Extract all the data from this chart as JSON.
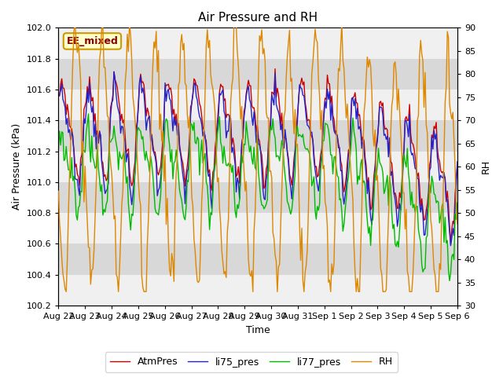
{
  "title": "Air Pressure and RH",
  "xlabel": "Time",
  "ylabel_left": "Air Pressure (kPa)",
  "ylabel_right": "RH",
  "ylim_left": [
    100.2,
    102.0
  ],
  "ylim_right": [
    30,
    90
  ],
  "yticks_left": [
    100.2,
    100.4,
    100.6,
    100.8,
    101.0,
    101.2,
    101.4,
    101.6,
    101.8,
    102.0
  ],
  "yticks_right": [
    30,
    35,
    40,
    45,
    50,
    55,
    60,
    65,
    70,
    75,
    80,
    85,
    90
  ],
  "legend_labels": [
    "AtmPres",
    "li75_pres",
    "li77_pres",
    "RH"
  ],
  "line_colors": {
    "AtmPres": "#cc0000",
    "li75_pres": "#2222cc",
    "li77_pres": "#00bb00",
    "RH": "#dd8800"
  },
  "station_label": "EE_mixed",
  "background_color": "#ffffff",
  "plot_bg_color": "#e8e8e8",
  "band_colors": [
    "#f0f0f0",
    "#d8d8d8"
  ],
  "n_points": 360,
  "xtick_labels": [
    "Aug 22",
    "Aug 23",
    "Aug 24",
    "Aug 25",
    "Aug 26",
    "Aug 27",
    "Aug 28",
    "Aug 29",
    "Aug 30",
    "Aug 31",
    "Sep 1",
    "Sep 2",
    "Sep 3",
    "Sep 4",
    "Sep 5",
    "Sep 6"
  ],
  "title_fontsize": 11,
  "label_fontsize": 9,
  "tick_fontsize": 8,
  "legend_fontsize": 9,
  "station_label_color": "#8B0000",
  "station_box_facecolor": "#ffffcc",
  "station_box_edgecolor": "#cc9900"
}
